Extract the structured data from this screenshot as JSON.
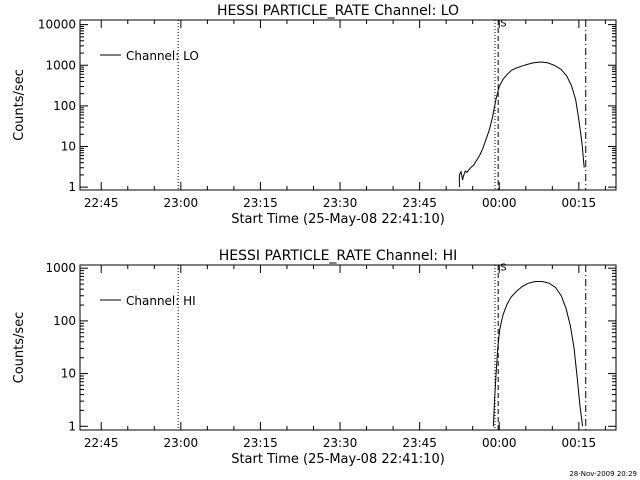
{
  "chart_data": [
    {
      "type": "line",
      "title": "HESSI PARTICLE_RATE Channel: LO",
      "xlabel": "Start Time (25-May-08 22:41:10)",
      "ylabel": "Counts/sec",
      "yscale": "log",
      "ylim": [
        0.85,
        13000
      ],
      "xlim_minutes_from_2241": [
        0,
        101
      ],
      "x_tick_labels": [
        "22:45",
        "23:00",
        "23:15",
        "23:30",
        "23:45",
        "00:00",
        "00:15"
      ],
      "x_tick_minutes_from_2241": [
        4,
        19,
        34,
        49,
        64,
        79,
        94
      ],
      "y_tick_labels": [
        "1",
        "10",
        "100",
        "1000",
        "10000"
      ],
      "y_tick_values": [
        1,
        10,
        100,
        1000,
        10000
      ],
      "legend": {
        "entries": [
          "Channel: LO"
        ],
        "position": "top-left"
      },
      "annotations": [
        {
          "type": "vline",
          "style": "dotted",
          "x_minute": 18.5
        },
        {
          "type": "vline",
          "style": "dotted",
          "x_minute": 78.2
        },
        {
          "type": "vline",
          "style": "dashed",
          "x_minute": 78.8
        },
        {
          "type": "vline",
          "style": "dashdot",
          "x_minute": 95.3
        },
        {
          "type": "text",
          "text": "S",
          "x_minute": 79.2,
          "y_value": 9000
        }
      ],
      "series": [
        {
          "name": "Channel: LO",
          "x": [
            71.5,
            71.5,
            71.8,
            72.1,
            72.2,
            72.6,
            72.9,
            73.3,
            73.7,
            74.2,
            74.7,
            75.3,
            75.9,
            76.5,
            77.1,
            77.7,
            78.4,
            79.0,
            79.7,
            80.5,
            81.3,
            82.2,
            83.2,
            84.3,
            85.5,
            86.8,
            88.1,
            89.4,
            90.6,
            91.7,
            92.6,
            93.4,
            94.0,
            94.6,
            95.0
          ],
          "y": [
            1,
            2,
            2.4,
            1.5,
            1.8,
            2.5,
            2.3,
            2.7,
            3.1,
            3.5,
            4.5,
            6,
            9,
            15,
            25,
            50,
            150,
            300,
            450,
            600,
            750,
            850,
            950,
            1050,
            1150,
            1200,
            1150,
            1000,
            800,
            550,
            320,
            140,
            45,
            12,
            3
          ]
        }
      ]
    },
    {
      "type": "line",
      "title": "HESSI PARTICLE_RATE Channel: HI",
      "xlabel": "Start Time (25-May-08 22:41:10)",
      "ylabel": "Counts/sec",
      "yscale": "log",
      "ylim": [
        0.85,
        1150
      ],
      "xlim_minutes_from_2241": [
        0,
        101
      ],
      "x_tick_labels": [
        "22:45",
        "23:00",
        "23:15",
        "23:30",
        "23:45",
        "00:00",
        "00:15"
      ],
      "x_tick_minutes_from_2241": [
        4,
        19,
        34,
        49,
        64,
        79,
        94
      ],
      "y_tick_labels": [
        "1",
        "10",
        "100",
        "1000"
      ],
      "y_tick_values": [
        1,
        10,
        100,
        1000
      ],
      "legend": {
        "entries": [
          "Channel: HI"
        ],
        "position": "top-left"
      },
      "annotations": [
        {
          "type": "vline",
          "style": "dotted",
          "x_minute": 18.5
        },
        {
          "type": "vline",
          "style": "dotted",
          "x_minute": 78.2
        },
        {
          "type": "vline",
          "style": "dashed",
          "x_minute": 78.8
        },
        {
          "type": "vline",
          "style": "dashdot",
          "x_minute": 95.3
        },
        {
          "type": "text",
          "text": "S",
          "x_minute": 79.2,
          "y_value": 900
        }
      ],
      "series": [
        {
          "name": "Channel: HI",
          "x": [
            77.9,
            78.1,
            78.4,
            78.7,
            79.1,
            79.7,
            80.4,
            81.2,
            82.2,
            83.3,
            84.5,
            85.8,
            87.1,
            88.4,
            89.6,
            90.7,
            91.6,
            92.4,
            93.1,
            93.7,
            94.2,
            94.7
          ],
          "y": [
            1,
            3,
            10,
            30,
            70,
            130,
            200,
            280,
            360,
            450,
            520,
            560,
            560,
            520,
            430,
            300,
            170,
            80,
            30,
            8,
            2.5,
            1
          ]
        }
      ]
    }
  ],
  "footer": {
    "timestamp": "28-Nov-2009 20:29"
  }
}
